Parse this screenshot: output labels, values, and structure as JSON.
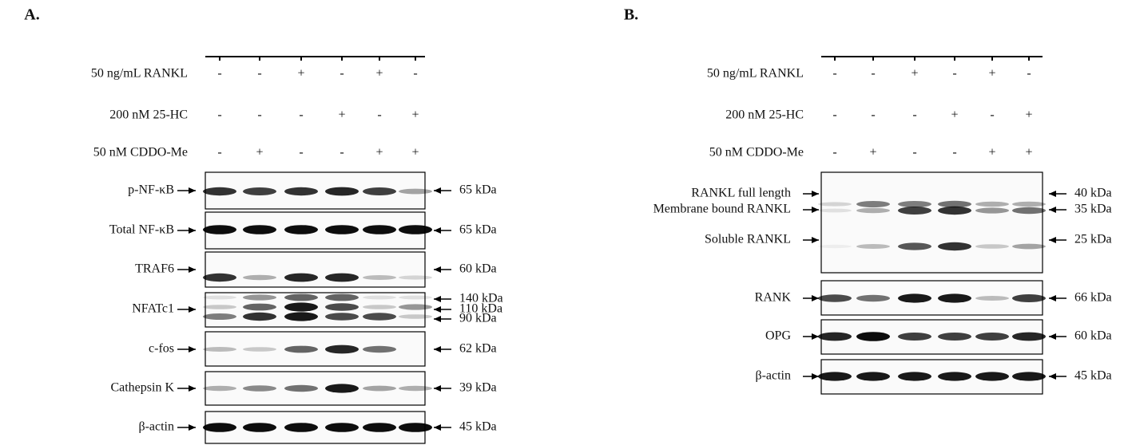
{
  "panels": [
    {
      "label": "A.",
      "treatments": [
        {
          "label": "50 ng/mL RANKL",
          "lanes": [
            "-",
            "-",
            "+",
            "-",
            "+",
            "-"
          ]
        },
        {
          "label": "200 nM 25-HC",
          "lanes": [
            "-",
            "-",
            "-",
            "+",
            "-",
            "+"
          ]
        },
        {
          "label": "50 nM CDDO-Me",
          "lanes": [
            "-",
            "+",
            "-",
            "-",
            "+",
            "+"
          ]
        }
      ],
      "blots": [
        {
          "labels": [
            "p-NF-κB"
          ],
          "sizes": [
            "65 kDa"
          ]
        },
        {
          "labels": [
            "Total NF-κB"
          ],
          "sizes": [
            "65 kDa"
          ]
        },
        {
          "labels": [
            "TRAF6"
          ],
          "sizes": [
            "60 kDa"
          ]
        },
        {
          "labels": [
            "NFATc1"
          ],
          "sizes": [
            "140 kDa",
            "110 kDa",
            "90 kDa"
          ]
        },
        {
          "labels": [
            "c-fos"
          ],
          "sizes": [
            "62 kDa"
          ]
        },
        {
          "labels": [
            "Cathepsin K"
          ],
          "sizes": [
            "39 kDa"
          ]
        },
        {
          "labels": [
            "β-actin"
          ],
          "sizes": [
            "45 kDa"
          ]
        }
      ]
    },
    {
      "label": "B.",
      "treatments": [
        {
          "label": "50 ng/mL RANKL",
          "lanes": [
            "-",
            "-",
            "+",
            "-",
            "+",
            "-"
          ]
        },
        {
          "label": "200 nM 25-HC",
          "lanes": [
            "-",
            "-",
            "-",
            "+",
            "-",
            "+"
          ]
        },
        {
          "label": "50 nM CDDO-Me",
          "lanes": [
            "-",
            "+",
            "-",
            "-",
            "+",
            "+"
          ]
        }
      ],
      "blots": [
        {
          "labels": [
            "RANKL full length",
            "Membrane bound RANKL",
            "Soluble RANKL"
          ],
          "sizes": [
            "40 kDa",
            "35 kDa",
            "25 kDa"
          ]
        },
        {
          "labels": [
            "RANK"
          ],
          "sizes": [
            "66 kDa"
          ]
        },
        {
          "labels": [
            "OPG"
          ],
          "sizes": [
            "60 kDa"
          ]
        },
        {
          "labels": [
            "β-actin"
          ],
          "sizes": [
            "45 kDa"
          ]
        }
      ]
    }
  ]
}
